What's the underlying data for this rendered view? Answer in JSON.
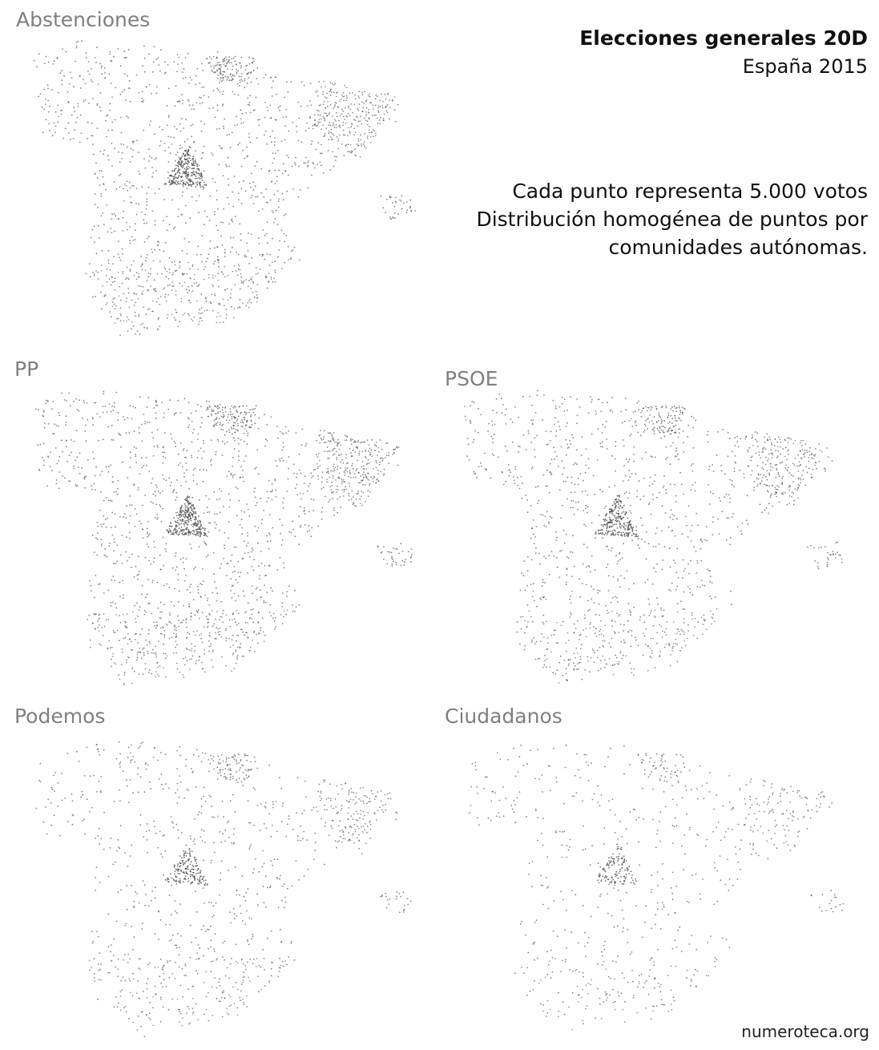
{
  "header": {
    "title": "Elecciones generales 20D",
    "subtitle": "España 2015"
  },
  "note": {
    "line1": "Cada punto representa 5.000 votos",
    "line2": "Distribución homogénea de puntos por",
    "line3": "comunidades autónomas."
  },
  "credit": "numeroteca.org",
  "panels": [
    {
      "label": "Abstenciones",
      "density": 1.0
    },
    {
      "label": "PP",
      "density": 1.05
    },
    {
      "label": "PSOE",
      "density": 0.85
    },
    {
      "label": "Podemos",
      "density": 0.6
    },
    {
      "label": "Ciudadanos",
      "density": 0.42
    }
  ],
  "dot_color": "#555555"
}
